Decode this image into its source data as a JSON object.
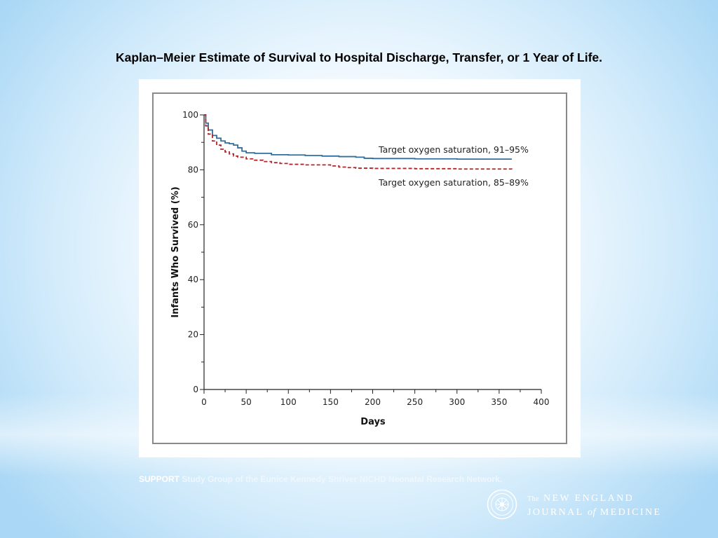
{
  "slide_title": "Kaplan–Meier Estimate of Survival to Hospital Discharge, Transfer, or 1 Year of Life.",
  "caption": {
    "lead": "SUPPORT",
    "rest": " Study Group of the Eunice Kennedy Shriver NICHD Neonatal Research Network."
  },
  "journal": {
    "the": "The",
    "line1": "NEW ENGLAND",
    "line2a": "JOURNAL",
    "of": "of",
    "line2b": "MEDICINE"
  },
  "chart_data": {
    "type": "line",
    "xlabel": "Days",
    "ylabel": "Infants Who Survived (%)",
    "xlim": [
      0,
      400
    ],
    "ylim": [
      0,
      100
    ],
    "xticks": [
      0,
      50,
      100,
      150,
      200,
      250,
      300,
      350,
      400
    ],
    "yticks": [
      0,
      20,
      40,
      60,
      80,
      100
    ],
    "grid": false,
    "series": [
      {
        "name": "Target oxygen saturation, 91–95%",
        "color": "#2f6f9f",
        "dash": "solid",
        "x": [
          0,
          2,
          5,
          10,
          15,
          20,
          25,
          30,
          35,
          40,
          45,
          50,
          60,
          80,
          100,
          120,
          140,
          160,
          180,
          190,
          200,
          250,
          300,
          365
        ],
        "y": [
          100,
          97,
          94.5,
          92.5,
          91.5,
          90.5,
          89.8,
          89.5,
          89,
          88,
          86.8,
          86.2,
          86,
          85.5,
          85.4,
          85.2,
          85,
          84.8,
          84.6,
          84.2,
          84.1,
          84,
          83.9,
          83.9
        ]
      },
      {
        "name": "Target oxygen saturation, 85–89%",
        "color": "#b0272a",
        "dash": "dashed",
        "x": [
          0,
          2,
          5,
          10,
          15,
          20,
          25,
          30,
          35,
          40,
          50,
          60,
          70,
          80,
          90,
          100,
          120,
          150,
          160,
          170,
          180,
          200,
          250,
          300,
          365
        ],
        "y": [
          100,
          96,
          93,
          90.5,
          89,
          87.5,
          86.5,
          85.8,
          85,
          84.6,
          84,
          83.5,
          83,
          82.6,
          82.3,
          82,
          81.8,
          81.4,
          81,
          80.8,
          80.6,
          80.5,
          80.4,
          80.3,
          80.2
        ]
      }
    ]
  }
}
